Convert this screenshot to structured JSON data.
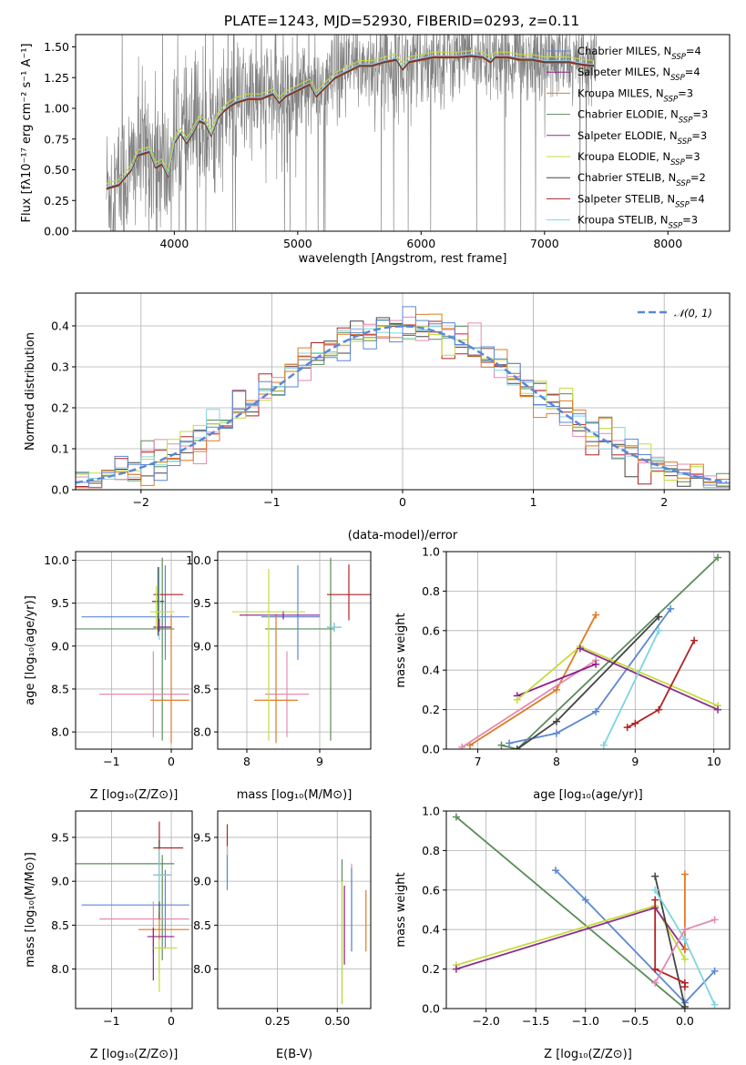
{
  "colors": {
    "c1": "#5b87d5",
    "c2": "#8e1f8e",
    "c3": "#e07a22",
    "c4": "#5a8c5a",
    "c5": "#8c2d8c",
    "c6": "#c4dc3c",
    "c7": "#444444",
    "c8": "#b22222",
    "c9": "#80d4e0",
    "c10": "#e58ab0",
    "gray": "#808080",
    "normal": "#5b87d5"
  },
  "chart_data": [
    {
      "id": "spectrum",
      "type": "line",
      "title": "PLATE=1243, MJD=52930, FIBERID=0293, z=0.11",
      "xlabel": "wavelength [Angstrom, rest frame]",
      "ylabel": "Flux [f_λ 10^-17 erg cm^-2 s^-1 A^-1]",
      "xlim": [
        3200,
        8500
      ],
      "ylim": [
        0,
        1.6
      ],
      "xticks": [
        4000,
        5000,
        6000,
        7000,
        8000
      ],
      "yticks": [
        0.0,
        0.25,
        0.5,
        0.75,
        1.0,
        1.25,
        1.5
      ],
      "grid": false,
      "legend_position": "top-right",
      "legend": [
        "Chabrier MILES, N_SSP=4",
        "Salpeter MILES, N_SSP=4",
        "Kroupa MILES, N_SSP=3",
        "Chabrier ELODIE, N_SSP=3",
        "Salpeter ELODIE, N_SSP=3",
        "Kroupa ELODIE, N_SSP=3",
        "Chabrier STELIB, N_SSP=2",
        "Salpeter STELIB, N_SSP=4",
        "Kroupa STELIB, N_SSP=3"
      ],
      "model_continuum": {
        "x": [
          3450,
          3550,
          3650,
          3700,
          3800,
          3850,
          3900,
          3950,
          4000,
          4050,
          4100,
          4150,
          4200,
          4250,
          4300,
          4350,
          4400,
          4450,
          4500,
          4600,
          4700,
          4800,
          4850,
          4900,
          5000,
          5100,
          5150,
          5200,
          5300,
          5400,
          5500,
          5600,
          5700,
          5800,
          5850,
          5900,
          6000,
          6100,
          6200,
          6300,
          6400,
          6500,
          6563,
          6600,
          6700,
          6800,
          6900,
          7000,
          7100,
          7200,
          7300,
          7400
        ],
        "y": [
          0.35,
          0.38,
          0.5,
          0.62,
          0.65,
          0.52,
          0.55,
          0.45,
          0.72,
          0.8,
          0.72,
          0.8,
          0.9,
          0.88,
          0.78,
          0.92,
          0.98,
          1.02,
          1.05,
          1.08,
          1.08,
          1.12,
          1.05,
          1.1,
          1.15,
          1.2,
          1.1,
          1.15,
          1.25,
          1.3,
          1.35,
          1.35,
          1.38,
          1.4,
          1.32,
          1.38,
          1.4,
          1.42,
          1.42,
          1.42,
          1.43,
          1.42,
          1.38,
          1.42,
          1.42,
          1.4,
          1.4,
          1.38,
          1.38,
          1.38,
          1.36,
          1.35
        ]
      },
      "observed_spectrum": {
        "x_range": [
          3450,
          7420
        ],
        "noise_note": ""
      }
    },
    {
      "id": "residuals",
      "type": "histogram",
      "xlabel": "(data-model)/error",
      "ylabel": "Normed distribution",
      "xlim": [
        -2.5,
        2.5
      ],
      "ylim": [
        0,
        0.48
      ],
      "xticks": [
        -2,
        -1,
        0,
        1,
        2
      ],
      "yticks": [
        0.0,
        0.1,
        0.2,
        0.3,
        0.4
      ],
      "grid": true,
      "legend": [
        "N(0,1)"
      ],
      "normal_curve": {
        "mu": 0,
        "sigma": 1
      },
      "bin_width": 0.1
    },
    {
      "id": "age_vs_Z",
      "type": "errorbar",
      "xlabel": "Z [log10(Z/Z⊙)]",
      "ylabel": "age  [log10(age/yr)]",
      "xlim": [
        -1.6,
        0.35
      ],
      "ylim": [
        7.8,
        10.1
      ],
      "xticks": [
        -1,
        0
      ],
      "yticks": [
        8.0,
        8.5,
        9.0,
        9.5,
        10.0
      ],
      "grid": true,
      "points": [
        {
          "c": "c4",
          "x": -0.15,
          "xerr": [
            1.55,
            0.2
          ],
          "y": 9.2,
          "yerr": [
            1.3,
            0.83
          ]
        },
        {
          "c": "c1",
          "x": -0.1,
          "xerr": [
            1.4,
            0.4
          ],
          "y": 9.34,
          "yerr": [
            0.5,
            0.6
          ]
        },
        {
          "c": "c10",
          "x": -0.3,
          "xerr": [
            0.9,
            0.6
          ],
          "y": 8.44,
          "yerr": [
            0.5,
            0.5
          ]
        },
        {
          "c": "c3",
          "x": 0.0,
          "xerr": [
            0.35,
            0.3
          ],
          "y": 8.37,
          "yerr": [
            0.5,
            1.0
          ]
        },
        {
          "c": "c8",
          "x": -0.2,
          "xerr": [
            0.1,
            0.4
          ],
          "y": 9.6,
          "yerr": [
            0.3,
            0.3
          ]
        },
        {
          "c": "c7",
          "x": -0.22,
          "xerr": [
            0.1,
            0.1
          ],
          "y": 9.52,
          "yerr": [
            0.4,
            0.4
          ]
        },
        {
          "c": "c9",
          "x": -0.2,
          "xerr": [
            0.1,
            0.2
          ],
          "y": 9.22,
          "yerr": [
            0.15,
            0.7
          ]
        },
        {
          "c": "c2",
          "x": -0.2,
          "xerr": [
            0.1,
            0.2
          ],
          "y": 9.22,
          "yerr": [
            0.05,
            0.1
          ]
        },
        {
          "c": "c6",
          "x": -0.25,
          "xerr": [
            0.1,
            0.3
          ],
          "y": 9.4,
          "yerr": [
            0.2,
            0.3
          ]
        }
      ]
    },
    {
      "id": "age_vs_mass",
      "type": "errorbar",
      "xlabel": "mass [log10(M/M⊙)]",
      "ylabel": "",
      "xlim": [
        7.6,
        9.7
      ],
      "ylim": [
        7.8,
        10.1
      ],
      "xticks": [
        8,
        9
      ],
      "yticks": [
        8.0,
        8.5,
        9.0,
        9.5,
        10.0
      ],
      "grid": true,
      "points": [
        {
          "c": "c4",
          "x": 9.15,
          "xerr": [
            0.9,
            0.05
          ],
          "y": 9.2,
          "yerr": [
            1.3,
            0.83
          ]
        },
        {
          "c": "c1",
          "x": 8.7,
          "xerr": [
            0.5,
            0.3
          ],
          "y": 9.34,
          "yerr": [
            0.5,
            0.6
          ]
        },
        {
          "c": "c10",
          "x": 8.55,
          "xerr": [
            0.3,
            0.3
          ],
          "y": 8.44,
          "yerr": [
            0.5,
            0.5
          ]
        },
        {
          "c": "c3",
          "x": 8.4,
          "xerr": [
            0.3,
            0.3
          ],
          "y": 8.37,
          "yerr": [
            0.5,
            1.0
          ]
        },
        {
          "c": "c8",
          "x": 9.4,
          "xerr": [
            0.3,
            0.3
          ],
          "y": 9.6,
          "yerr": [
            0.3,
            0.35
          ]
        },
        {
          "c": "c7",
          "x": 9.2,
          "xerr": [
            0.1,
            0.1
          ],
          "y": 9.22,
          "yerr": [
            0.05,
            0.05
          ]
        },
        {
          "c": "c9",
          "x": 9.2,
          "xerr": [
            0.1,
            0.1
          ],
          "y": 9.22,
          "yerr": [
            0.05,
            0.05
          ]
        },
        {
          "c": "c2",
          "x": 8.5,
          "xerr": [
            0.6,
            0.5
          ],
          "y": 9.36,
          "yerr": [
            0.05,
            0.05
          ]
        },
        {
          "c": "c6",
          "x": 8.3,
          "xerr": [
            0.5,
            0.5
          ],
          "y": 9.4,
          "yerr": [
            1.5,
            0.5
          ]
        }
      ]
    },
    {
      "id": "mass_weight_vs_age",
      "type": "line",
      "xlabel": "age  [log10(age/yr)]",
      "ylabel": "mass weight",
      "xlim": [
        6.6,
        10.2
      ],
      "ylim": [
        0,
        1.0
      ],
      "xticks": [
        7,
        8,
        9,
        10
      ],
      "yticks": [
        0.0,
        0.2,
        0.4,
        0.6,
        0.8,
        1.0
      ],
      "grid": true,
      "series": [
        {
          "c": "c4",
          "x": [
            7.3,
            7.5,
            10.05
          ],
          "y": [
            0.02,
            0.0,
            0.97
          ]
        },
        {
          "c": "c1",
          "x": [
            7.4,
            8.0,
            8.5,
            9.45
          ],
          "y": [
            0.03,
            0.08,
            0.19,
            0.71
          ]
        },
        {
          "c": "c3",
          "x": [
            6.9,
            8.0,
            8.5
          ],
          "y": [
            0.02,
            0.3,
            0.68
          ]
        },
        {
          "c": "c10",
          "x": [
            6.8,
            8.5
          ],
          "y": [
            0.01,
            0.45
          ]
        },
        {
          "c": "c2",
          "x": [
            7.5,
            8.5
          ],
          "y": [
            0.27,
            0.43
          ]
        },
        {
          "c": "c6",
          "x": [
            7.5,
            8.3,
            10.05
          ],
          "y": [
            0.25,
            0.52,
            0.22
          ]
        },
        {
          "c": "c5",
          "x": [
            8.3,
            10.05
          ],
          "y": [
            0.51,
            0.2
          ]
        },
        {
          "c": "c7",
          "x": [
            7.5,
            8.0,
            9.3
          ],
          "y": [
            0.0,
            0.14,
            0.67
          ]
        },
        {
          "c": "c8",
          "x": [
            8.9,
            9.0,
            9.3,
            9.75
          ],
          "y": [
            0.11,
            0.13,
            0.2,
            0.55
          ]
        },
        {
          "c": "c9",
          "x": [
            8.6,
            9.3
          ],
          "y": [
            0.02,
            0.6
          ]
        }
      ]
    },
    {
      "id": "mass_vs_Z",
      "type": "errorbar",
      "xlabel": "Z [log10(Z/Z⊙)]",
      "ylabel": "mass [log10(M/M⊙)]",
      "xlim": [
        -1.6,
        0.35
      ],
      "ylim": [
        7.55,
        9.8
      ],
      "xticks": [
        -1,
        0
      ],
      "yticks": [
        8.0,
        8.5,
        9.0,
        9.5
      ],
      "grid": true,
      "points": [
        {
          "c": "c4",
          "x": -0.15,
          "xerr": [
            1.55,
            0.2
          ],
          "y": 9.2,
          "yerr": [
            1.1,
            0.1
          ]
        },
        {
          "c": "c1",
          "x": -0.1,
          "xerr": [
            1.4,
            0.4
          ],
          "y": 8.73,
          "yerr": [
            0.5,
            0.4
          ]
        },
        {
          "c": "c10",
          "x": -0.3,
          "xerr": [
            0.9,
            0.6
          ],
          "y": 8.57,
          "yerr": [
            0.4,
            0.2
          ]
        },
        {
          "c": "c3",
          "x": -0.2,
          "xerr": [
            0.35,
            0.5
          ],
          "y": 8.45,
          "yerr": [
            0.5,
            0.2
          ]
        },
        {
          "c": "c8",
          "x": -0.2,
          "xerr": [
            0.1,
            0.4
          ],
          "y": 9.38,
          "yerr": [
            0.2,
            0.3
          ]
        },
        {
          "c": "c7",
          "x": -0.2,
          "xerr": [
            0.1,
            0.2
          ],
          "y": 9.07,
          "yerr": [
            0.5,
            0.4
          ]
        },
        {
          "c": "c9",
          "x": -0.2,
          "xerr": [
            0.1,
            0.2
          ],
          "y": 9.07,
          "yerr": [
            0.3,
            0.3
          ]
        },
        {
          "c": "c2",
          "x": -0.3,
          "xerr": [
            0.1,
            0.35
          ],
          "y": 8.37,
          "yerr": [
            0.5,
            0.1
          ]
        },
        {
          "c": "c6",
          "x": -0.2,
          "xerr": [
            0.1,
            0.3
          ],
          "y": 8.24,
          "yerr": [
            0.5,
            0.1
          ]
        }
      ]
    },
    {
      "id": "mass_vs_EBV",
      "type": "errorbar",
      "xlabel": "E(B-V)",
      "ylabel": "",
      "xlim": [
        0.0,
        0.64
      ],
      "ylim": [
        7.55,
        9.8
      ],
      "xticks": [
        0.25,
        0.5
      ],
      "xticklabels": [
        "0.25",
        "0.50"
      ],
      "yticks": [
        8.0,
        8.5,
        9.0,
        9.5
      ],
      "grid": true,
      "points": [
        {
          "c": "c8",
          "x": 0.04,
          "xerr": [
            0,
            0
          ],
          "y": 9.45,
          "yerr": [
            0.15,
            0.2
          ]
        },
        {
          "c": "c9",
          "x": 0.04,
          "xerr": [
            0,
            0
          ],
          "y": 9.2,
          "yerr": [
            0.2,
            0.2
          ]
        },
        {
          "c": "c1",
          "x": 0.04,
          "xerr": [
            0,
            0
          ],
          "y": 9.0,
          "yerr": [
            0.1,
            0.3
          ]
        },
        {
          "c": "c4",
          "x": 0.52,
          "xerr": [
            0,
            0
          ],
          "y": 8.6,
          "yerr": [
            1.0,
            0.65
          ]
        },
        {
          "c": "c6",
          "x": 0.52,
          "xerr": [
            0,
            0
          ],
          "y": 8.4,
          "yerr": [
            0.8,
            0.6
          ]
        },
        {
          "c": "c2",
          "x": 0.53,
          "xerr": [
            0,
            0
          ],
          "y": 8.55,
          "yerr": [
            0.5,
            0.4
          ]
        },
        {
          "c": "c10",
          "x": 0.56,
          "xerr": [
            0,
            0
          ],
          "y": 8.7,
          "yerr": [
            0.5,
            0.5
          ]
        },
        {
          "c": "c1",
          "x": 0.56,
          "xerr": [
            0,
            0
          ],
          "y": 8.4,
          "yerr": [
            0.2,
            0.75
          ]
        },
        {
          "c": "c3",
          "x": 0.62,
          "xerr": [
            0,
            0
          ],
          "y": 8.55,
          "yerr": [
            0.35,
            0.35
          ]
        }
      ]
    },
    {
      "id": "mass_weight_vs_Z",
      "type": "line",
      "xlabel": "Z [log10(Z/Z⊙)]",
      "ylabel": "mass weight",
      "xlim": [
        -2.4,
        0.45
      ],
      "ylim": [
        0,
        1.0
      ],
      "xticks": [
        -2.0,
        -1.5,
        -1.0,
        -0.5,
        0.0
      ],
      "yticks": [
        0.0,
        0.2,
        0.4,
        0.6,
        0.8,
        1.0
      ],
      "grid": true,
      "series": [
        {
          "c": "c4",
          "x": [
            -2.3,
            0.0
          ],
          "y": [
            0.97,
            0.0
          ]
        },
        {
          "c": "c1",
          "x": [
            -1.3,
            -1.0,
            0.0,
            0.3
          ],
          "y": [
            0.7,
            0.55,
            0.03,
            0.19
          ]
        },
        {
          "c": "c6",
          "x": [
            -2.3,
            -0.3,
            0.0
          ],
          "y": [
            0.22,
            0.52,
            0.25
          ]
        },
        {
          "c": "c5",
          "x": [
            -2.3,
            -0.3,
            0.0
          ],
          "y": [
            0.2,
            0.51,
            0.3
          ]
        },
        {
          "c": "c7",
          "x": [
            -0.3,
            0.0
          ],
          "y": [
            0.67,
            0.01
          ]
        },
        {
          "c": "c8",
          "x": [
            -0.3,
            -0.3,
            0.0,
            0.0
          ],
          "y": [
            0.55,
            0.2,
            0.13,
            0.11
          ]
        },
        {
          "c": "c3",
          "x": [
            0.0,
            0.0
          ],
          "y": [
            0.68,
            0.3
          ]
        },
        {
          "c": "c9",
          "x": [
            -0.3,
            0.0,
            0.3
          ],
          "y": [
            0.6,
            0.35,
            0.02
          ]
        },
        {
          "c": "c10",
          "x": [
            -0.3,
            0.0,
            0.3
          ],
          "y": [
            0.13,
            0.4,
            0.45
          ]
        }
      ]
    }
  ]
}
